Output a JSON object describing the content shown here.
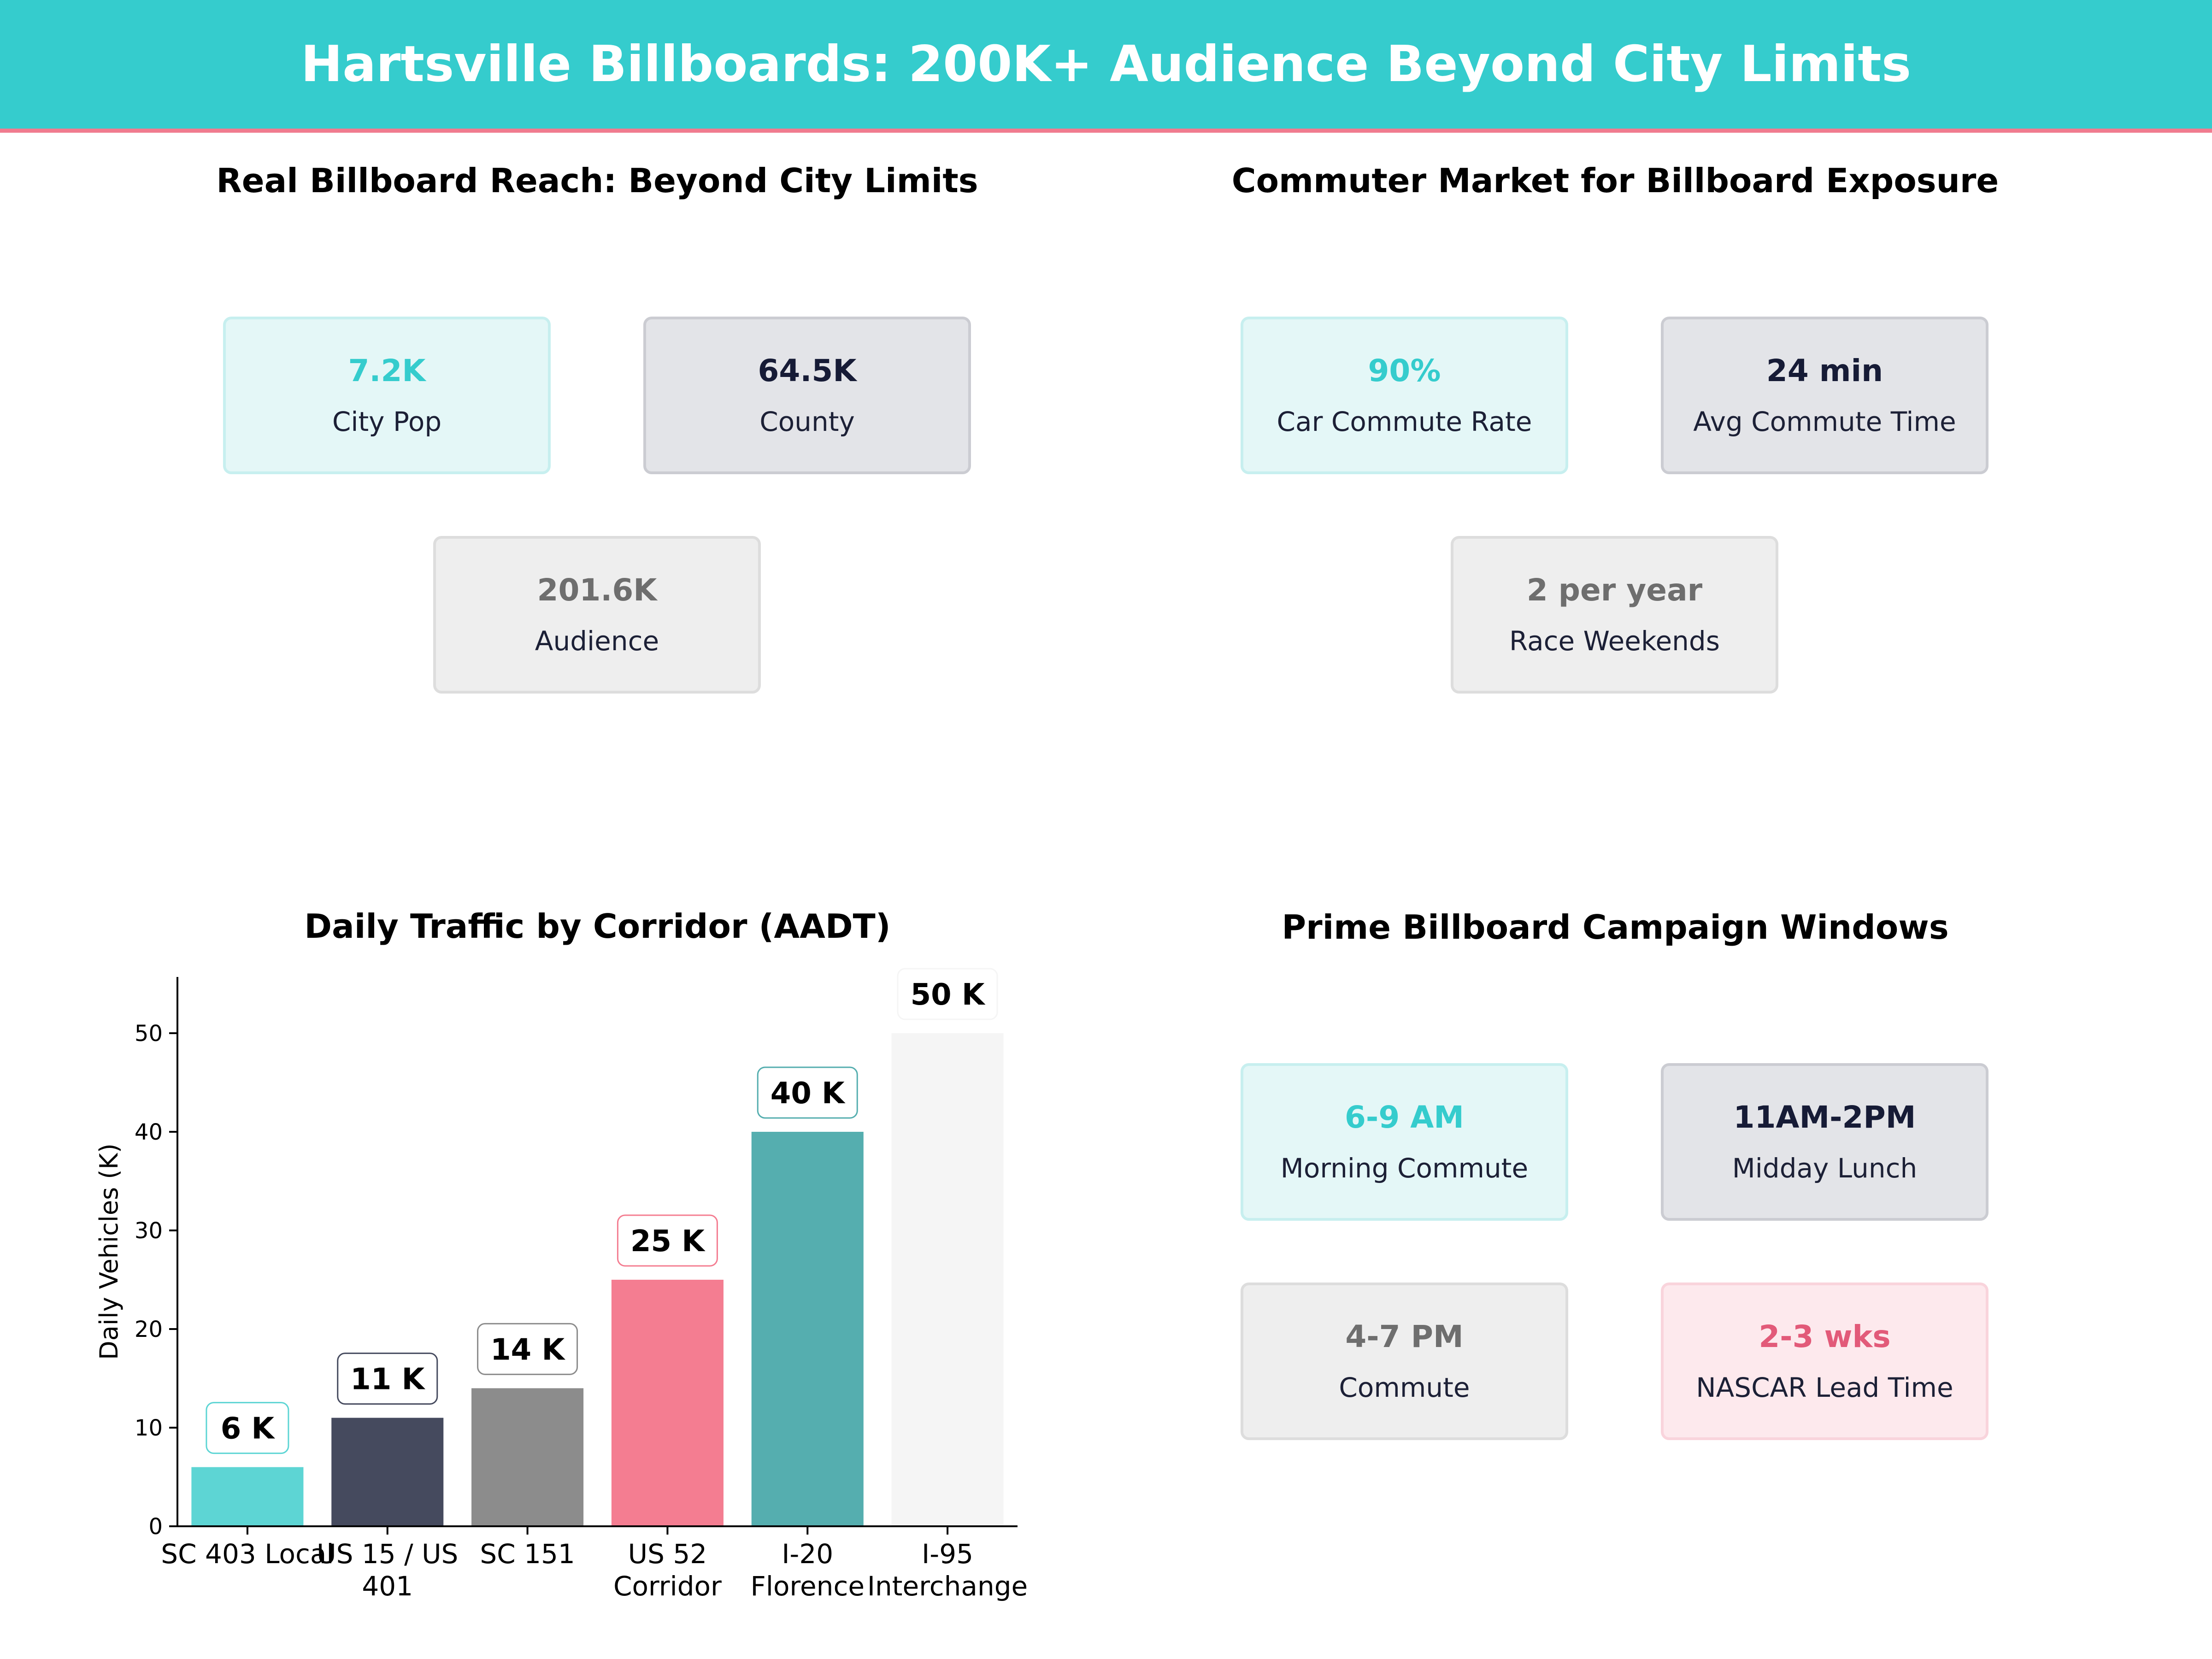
{
  "header": {
    "title": "Hartsville Billboards: 200K+ Audience Beyond City Limits"
  },
  "panels": {
    "reach": {
      "title": "Real Billboard Reach: Beyond City Limits",
      "cards": [
        {
          "value": "7.2K",
          "label": "City Pop",
          "style": "teal"
        },
        {
          "value": "64.5K",
          "label": "County",
          "style": "navy"
        },
        {
          "value": "201.6K",
          "label": "Audience",
          "style": "gray"
        }
      ]
    },
    "commuter": {
      "title": "Commuter Market for Billboard Exposure",
      "cards": [
        {
          "value": "90%",
          "label": "Car Commute Rate",
          "style": "teal"
        },
        {
          "value": "24 min",
          "label": "Avg Commute Time",
          "style": "navy"
        },
        {
          "value": "2 per year",
          "label": "Race Weekends",
          "style": "gray"
        }
      ]
    },
    "windows": {
      "title": "Prime Billboard Campaign Windows",
      "cards": [
        {
          "value": "6-9 AM",
          "label": "Morning Commute",
          "style": "teal"
        },
        {
          "value": "11AM-2PM",
          "label": "Midday Lunch",
          "style": "navy"
        },
        {
          "value": "4-7 PM",
          "label": "Commute",
          "style": "gray"
        },
        {
          "value": "2-3 wks",
          "label": "NASCAR Lead Time",
          "style": "pink"
        }
      ]
    }
  },
  "chart_data": {
    "type": "bar",
    "title": "Daily Traffic by Corridor (AADT)",
    "xlabel": "",
    "ylabel": "Daily Vehicles (K)",
    "ylim": [
      0,
      55.7
    ],
    "yticks": [
      0,
      10,
      20,
      30,
      40,
      50
    ],
    "categories": [
      [
        "SC 403 Local"
      ],
      [
        "US 15 / US",
        "401"
      ],
      [
        "SC 151"
      ],
      [
        "US 52",
        "Corridor"
      ],
      [
        "I-20",
        "Florence"
      ],
      [
        "I-95",
        "Interchange"
      ]
    ],
    "values": [
      6,
      11,
      14,
      25,
      40,
      50
    ],
    "value_labels": [
      "6 K",
      "11 K",
      "14 K",
      "25 K",
      "40 K",
      "50 K"
    ],
    "bar_colors": [
      "#5dd5d4",
      "#454a5e",
      "#8c8c8c",
      "#f47d91",
      "#55aeaf",
      "#f5f5f5"
    ],
    "label_border_colors": [
      "#5dd5d4",
      "#454a5e",
      "#8c8c8c",
      "#f47d91",
      "#55aeaf",
      "#f5f5f5"
    ],
    "grid": false,
    "legend": "none"
  }
}
